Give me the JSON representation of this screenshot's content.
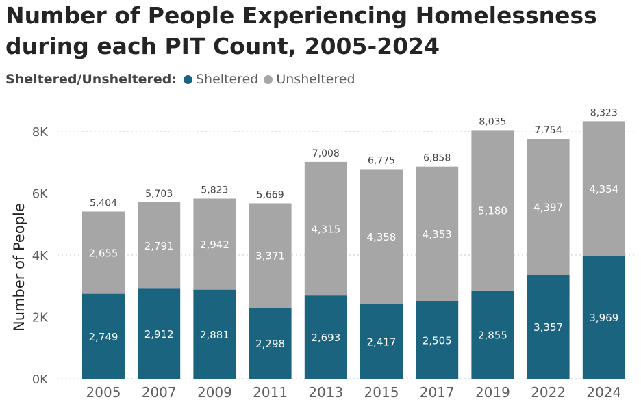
{
  "title_lines": [
    "Number of People Experiencing Homelessness",
    "during each PIT Count, 2005-2024"
  ],
  "legend": {
    "title": "Sheltered/Unsheltered:",
    "items": [
      {
        "label": "Sheltered",
        "color": "#1a6480"
      },
      {
        "label": "Unsheltered",
        "color": "#a6a6a6"
      }
    ]
  },
  "chart_data": {
    "type": "bar",
    "stacked": true,
    "ylabel": "Number of People",
    "xlabel": "",
    "ylim": [
      0,
      8400
    ],
    "yticks": [
      0,
      2000,
      4000,
      6000,
      8000
    ],
    "ytick_labels": [
      "0K",
      "2K",
      "4K",
      "6K",
      "8K"
    ],
    "grid": true,
    "categories": [
      "2005",
      "2007",
      "2009",
      "2011",
      "2013",
      "2015",
      "2017",
      "2019",
      "2022",
      "2024"
    ],
    "series": [
      {
        "name": "Sheltered",
        "color": "#1a6480",
        "values": [
          2749,
          2912,
          2881,
          2298,
          2693,
          2417,
          2505,
          2855,
          3357,
          3969
        ],
        "value_labels": [
          "2,749",
          "2,912",
          "2,881",
          "2,298",
          "2,693",
          "2,417",
          "2,505",
          "2,855",
          "3,357",
          "3,969"
        ]
      },
      {
        "name": "Unsheltered",
        "color": "#a6a6a6",
        "values": [
          2655,
          2791,
          2942,
          3371,
          4315,
          4358,
          4353,
          5180,
          4397,
          4354
        ],
        "value_labels": [
          "2,655",
          "2,791",
          "2,942",
          "3,371",
          "4,315",
          "4,358",
          "4,353",
          "5,180",
          "4,397",
          "4,354"
        ]
      }
    ],
    "totals": [
      5404,
      5703,
      5823,
      5669,
      7008,
      6775,
      6858,
      8035,
      7754,
      8323
    ],
    "total_labels": [
      "5,404",
      "5,703",
      "5,823",
      "5,669",
      "7,008",
      "6,775",
      "6,858",
      "8,035",
      "7,754",
      "8,323"
    ]
  }
}
